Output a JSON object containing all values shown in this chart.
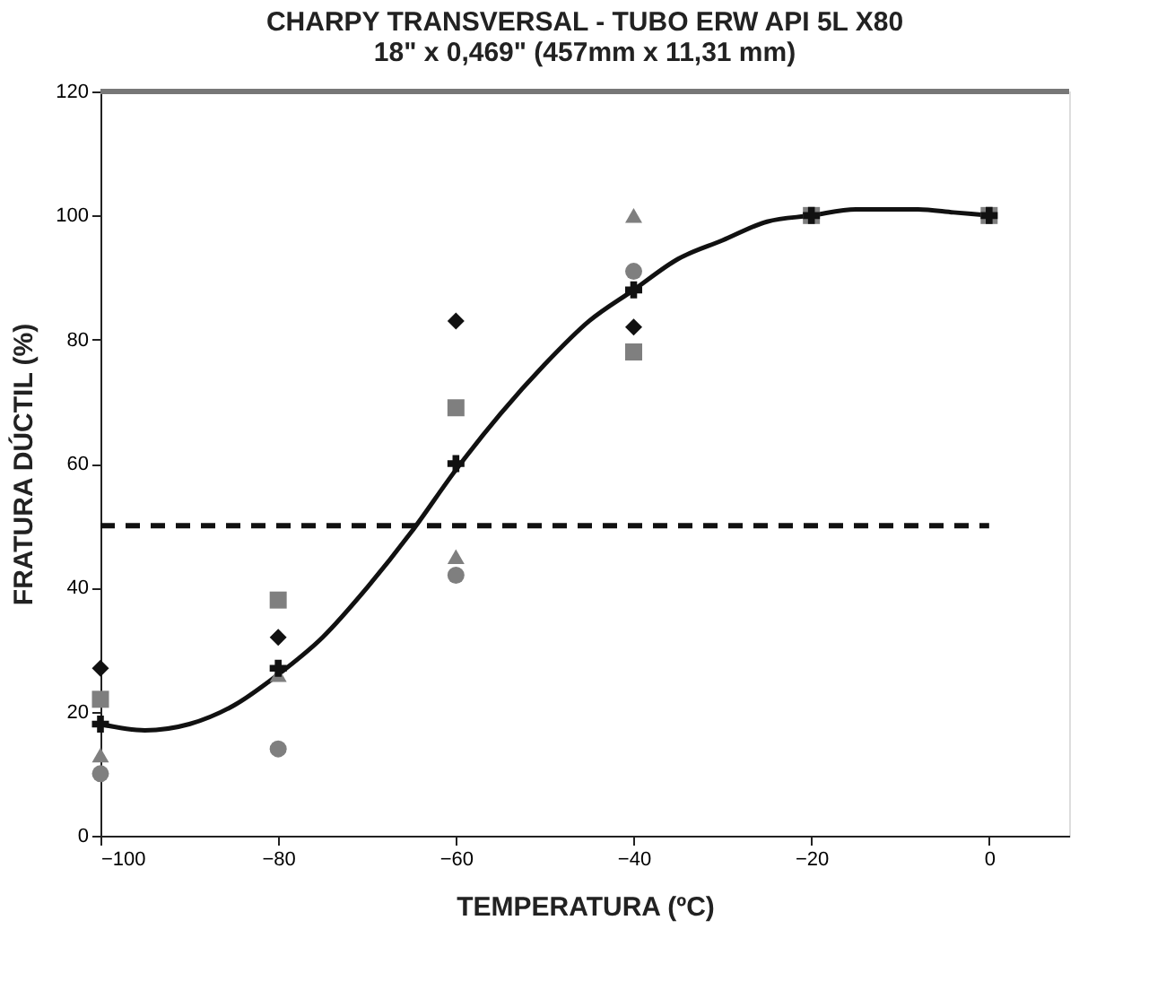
{
  "chart_data": {
    "type": "scatter",
    "title": "CHARPY TRANSVERSAL - TUBO ERW API 5L X80",
    "subtitle": "18\" x 0,469\" (457mm x 11,31 mm)",
    "xlabel": "TEMPERATURA (ºC)",
    "ylabel": "FRATURA DÚCTIL (%)",
    "x": [
      -100,
      -80,
      -60,
      -40,
      -20,
      0
    ],
    "series": [
      {
        "marker": "diamond",
        "color": "#111111",
        "values": [
          27,
          32,
          83,
          82,
          null,
          null
        ]
      },
      {
        "marker": "triangle",
        "color": "#7f7f7f",
        "values": [
          13,
          26,
          45,
          100,
          null,
          null
        ]
      },
      {
        "marker": "circle",
        "color": "#7f7f7f",
        "values": [
          10,
          14,
          42,
          91,
          null,
          null
        ]
      },
      {
        "marker": "square",
        "color": "#7f7f7f",
        "values": [
          22,
          38,
          69,
          78,
          100,
          100
        ]
      },
      {
        "marker": "cross",
        "color": "#111111",
        "values": [
          18,
          27,
          60,
          88,
          100,
          100
        ]
      },
      {
        "type": "line",
        "marker": "none",
        "line_style": "solid",
        "color": "#111111",
        "x": [
          -100,
          -95,
          -90,
          -85,
          -80,
          -75,
          -70,
          -65,
          -60,
          -55,
          -50,
          -45,
          -40,
          -35,
          -30,
          -25,
          -20,
          -15,
          -12,
          -8,
          -4,
          0
        ],
        "values": [
          18,
          17,
          18,
          21,
          26,
          32,
          40,
          49,
          59,
          68,
          76,
          83,
          88,
          93,
          96,
          99,
          100,
          101,
          101,
          101,
          100.5,
          100
        ]
      }
    ],
    "xlim": [
      -100,
      9
    ],
    "xticks": [
      -100,
      -80,
      -60,
      -40,
      -20,
      0
    ],
    "ylim": [
      0,
      120
    ],
    "yticks": [
      0,
      20,
      40,
      60,
      80,
      100,
      120
    ],
    "ref_lines": [
      {
        "axis": "y",
        "value": 50,
        "color": "#111111",
        "line_style": "dashed"
      }
    ],
    "grid": false
  }
}
